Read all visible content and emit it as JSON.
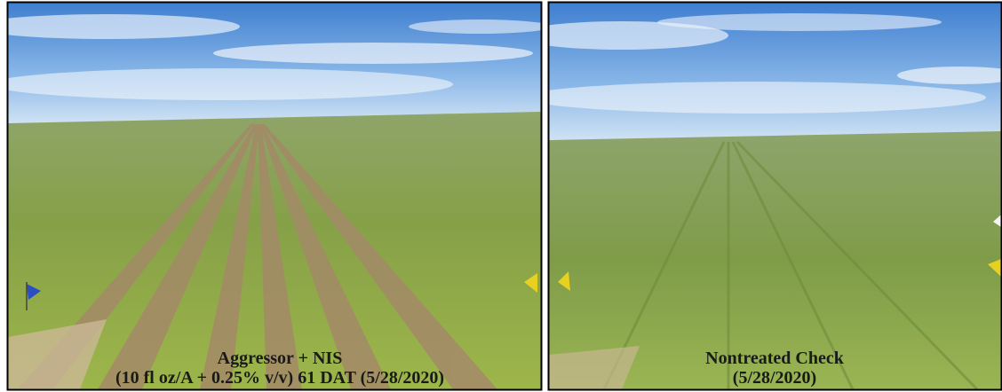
{
  "panels": [
    {
      "caption": [
        "Aggressor + NIS",
        "(10 fl oz/A + 0.25% v/v) 61 DAT (5/28/2020)"
      ]
    },
    {
      "caption": [
        "Nontreated Check",
        "(5/28/2020)"
      ]
    }
  ]
}
